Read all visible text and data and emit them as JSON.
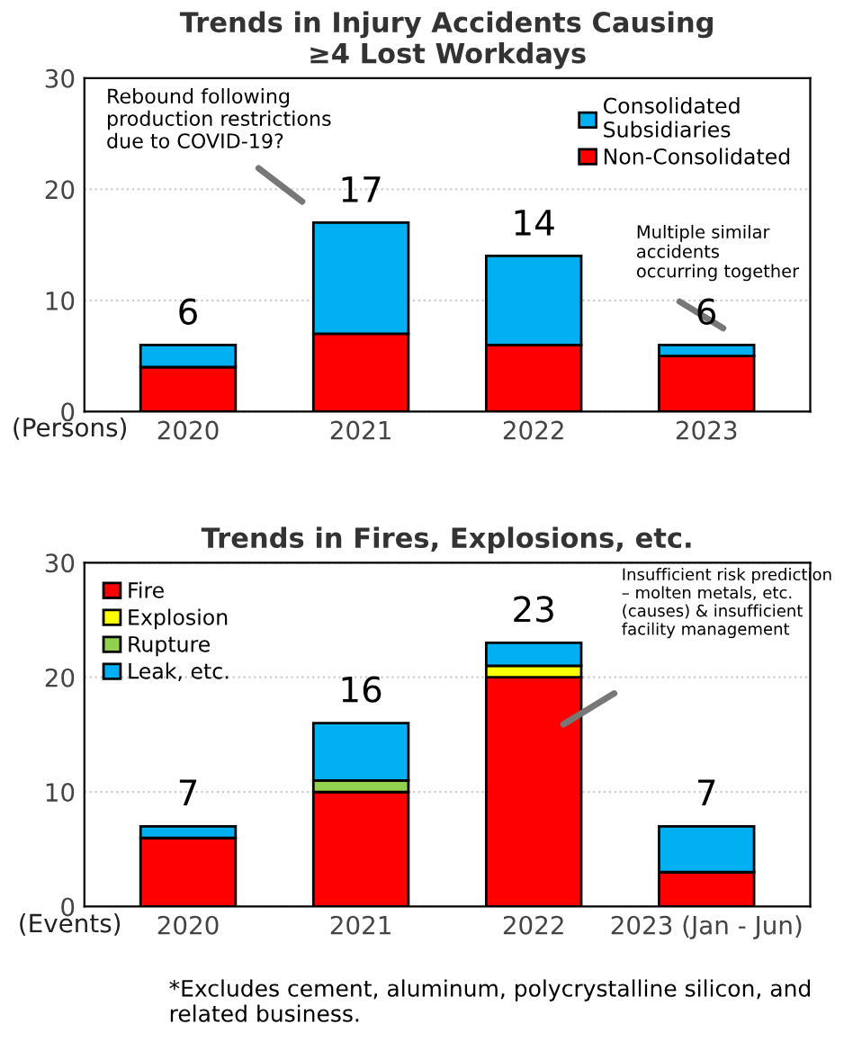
{
  "chart_data": [
    {
      "type": "bar",
      "title": "Trends in Injury Accidents Causing\n≥4 Lost Workdays",
      "ylabel": "(Persons)",
      "categories": [
        "2020",
        "2021",
        "2022",
        "2023"
      ],
      "stacked": true,
      "series": [
        {
          "name": "Non-Consolidated",
          "color": "#ff0000",
          "values": [
            4,
            7,
            6,
            5
          ]
        },
        {
          "name": "Consolidated\nSubsidiaries",
          "color": "#00b0f0",
          "values": [
            2,
            10,
            8,
            1
          ]
        }
      ],
      "totals": [
        "6",
        "17",
        "14",
        "6"
      ],
      "ylim": [
        0,
        30
      ],
      "yticks": [
        0,
        10,
        20,
        30
      ],
      "grid": "y",
      "legend": "top right",
      "annotations": [
        "Rebound following\nproduction restrictions\ndue to COVID-19?",
        "Multiple similar\naccidents\noccurring together"
      ]
    },
    {
      "type": "bar",
      "title": "Trends in Fires, Explosions, etc.",
      "ylabel": "(Events)",
      "categories": [
        "2020",
        "2021",
        "2022",
        "2023 (Jan - Jun)"
      ],
      "stacked": true,
      "series": [
        {
          "name": "Fire",
          "color": "#ff0000",
          "values": [
            6,
            10,
            20,
            3
          ]
        },
        {
          "name": "Explosion",
          "color": "#ffff00",
          "values": [
            0,
            0,
            1,
            0
          ]
        },
        {
          "name": "Rupture",
          "color": "#92d050",
          "values": [
            0,
            1,
            0,
            0
          ]
        },
        {
          "name": "Leak, etc.",
          "color": "#00b0f0",
          "values": [
            1,
            5,
            2,
            4
          ]
        }
      ],
      "totals": [
        "7",
        "16",
        "23",
        "7"
      ],
      "ylim": [
        0,
        30
      ],
      "yticks": [
        0,
        10,
        20,
        30
      ],
      "grid": "y",
      "legend": "top left",
      "annotations": [
        "Insufficient risk prediction\n– molten metals, etc.\n(causes) & insufficient\nfacility management",
        "*Excludes cement, aluminum, polycrystalline silicon, and\nrelated business."
      ]
    }
  ]
}
